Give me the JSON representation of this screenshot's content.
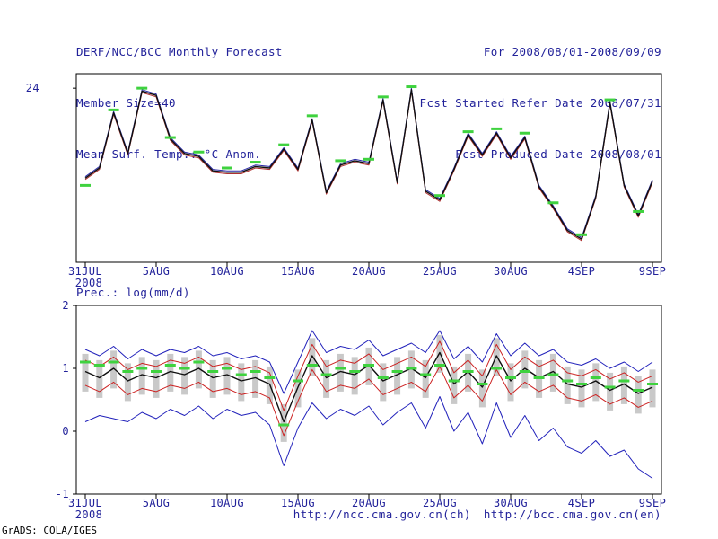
{
  "header": {
    "left": [
      "DERF/NCC/BCC Monthly Forecast",
      "Member Size=40",
      "Mean Surf. Temp.: °C Anom."
    ],
    "right": [
      "For 2008/08/01-2008/09/09",
      "Fcst Started Refer Date 2008/07/31",
      "Fcst Produced Date 2008/08/01"
    ]
  },
  "footer": {
    "credit": "GrADS: COLA/IGES",
    "url_ch": "http://ncc.cma.gov.cn(ch)",
    "url_en": "http://bcc.cma.gov.cn(en)"
  },
  "colors": {
    "text": "#22229a",
    "axis": "#000000",
    "obs_green": "#3fd23f",
    "spread_gray": "#c9c9c9"
  },
  "chart_data": [
    {
      "type": "line",
      "name": "surface-temp-anomaly",
      "x_tick_labels": [
        "31JUL",
        "5AUG",
        "10AUG",
        "15AUG",
        "20AUG",
        "25AUG",
        "30AUG",
        "4SEP",
        "9SEP"
      ],
      "x_tick_step": 5,
      "x_year_label": "2008",
      "ylim": [
        12,
        25
      ],
      "y_tick_values": [
        24
      ],
      "y_tick_labels": [
        "24"
      ],
      "series": [
        {
          "name": "ensemble-member-upper",
          "color": "#2a2aa8",
          "width": 1,
          "values": [
            17.9,
            18.6,
            22.4,
            19.6,
            23.9,
            23.6,
            20.6,
            19.6,
            19.4,
            18.4,
            18.3,
            18.3,
            18.7,
            18.6,
            19.9,
            18.5,
            21.9,
            16.9,
            18.8,
            19.1,
            18.9,
            23.3,
            17.6,
            24.0,
            17.0,
            16.4,
            18.5,
            20.9,
            19.5,
            21.0,
            19.3,
            20.7,
            17.3,
            15.9,
            14.3,
            13.7,
            16.6,
            23.1,
            17.4,
            15.3,
            17.7
          ]
        },
        {
          "name": "ensemble-member-lower",
          "color": "#b03030",
          "width": 1,
          "values": [
            17.7,
            18.4,
            22.2,
            19.4,
            23.7,
            23.4,
            20.4,
            19.4,
            19.2,
            18.2,
            18.1,
            18.1,
            18.5,
            18.4,
            19.7,
            18.3,
            21.7,
            16.7,
            18.6,
            18.9,
            18.7,
            23.1,
            17.4,
            23.8,
            16.8,
            16.2,
            18.3,
            20.7,
            19.3,
            20.8,
            19.1,
            20.5,
            17.1,
            15.7,
            14.1,
            13.5,
            16.4,
            22.9,
            17.2,
            15.1,
            17.5
          ]
        },
        {
          "name": "ensemble-mean",
          "color": "#101010",
          "width": 1.4,
          "values": [
            17.8,
            18.5,
            22.3,
            19.5,
            23.8,
            23.5,
            20.5,
            19.5,
            19.3,
            18.3,
            18.2,
            18.2,
            18.6,
            18.5,
            19.8,
            18.4,
            21.8,
            16.8,
            18.7,
            19.0,
            18.8,
            23.2,
            17.5,
            23.9,
            16.9,
            16.3,
            18.4,
            20.8,
            19.4,
            20.9,
            19.2,
            20.6,
            17.2,
            15.8,
            14.2,
            13.6,
            16.5,
            23.0,
            17.3,
            15.2,
            17.6
          ]
        }
      ],
      "obs_markers": {
        "name": "observed-value-markers",
        "color": "#3fd23f",
        "values": [
          17.3,
          null,
          22.5,
          null,
          24.0,
          null,
          20.6,
          null,
          19.6,
          null,
          18.5,
          null,
          18.9,
          null,
          20.1,
          null,
          22.1,
          null,
          19.0,
          null,
          19.1,
          23.4,
          null,
          24.1,
          null,
          16.6,
          null,
          21.0,
          null,
          21.2,
          null,
          20.9,
          null,
          16.1,
          null,
          13.9,
          null,
          23.2,
          null,
          15.5,
          null
        ]
      }
    },
    {
      "type": "line",
      "name": "precipitation",
      "title": "Prec.: log(mm/d)",
      "x_tick_labels": [
        "31JUL",
        "5AUG",
        "10AUG",
        "15AUG",
        "20AUG",
        "25AUG",
        "30AUG",
        "4SEP",
        "9SEP"
      ],
      "x_tick_step": 5,
      "x_year_label": "2008",
      "ylim": [
        -1,
        2
      ],
      "y_tick_values": [
        2,
        1,
        0,
        -1
      ],
      "y_tick_labels": [
        "2",
        "1",
        "0",
        "-1"
      ],
      "spread_bars": {
        "name": "ensemble-spread-bars",
        "color": "#c9c9c9",
        "high": [
          1.23,
          1.13,
          1.28,
          1.08,
          1.18,
          1.13,
          1.23,
          1.18,
          1.28,
          1.13,
          1.18,
          1.08,
          1.13,
          1.03,
          0.43,
          0.98,
          1.48,
          1.13,
          1.23,
          1.18,
          1.33,
          1.08,
          1.18,
          1.28,
          1.13,
          1.53,
          1.03,
          1.23,
          0.98,
          1.48,
          1.08,
          1.28,
          1.13,
          1.23,
          1.03,
          0.98,
          1.08,
          0.93,
          1.03,
          0.88,
          0.98
        ],
        "low": [
          0.63,
          0.53,
          0.68,
          0.48,
          0.58,
          0.53,
          0.63,
          0.58,
          0.68,
          0.53,
          0.58,
          0.48,
          0.53,
          0.43,
          -0.17,
          0.38,
          0.88,
          0.53,
          0.63,
          0.58,
          0.73,
          0.48,
          0.58,
          0.68,
          0.53,
          0.93,
          0.43,
          0.63,
          0.38,
          0.88,
          0.48,
          0.68,
          0.53,
          0.63,
          0.43,
          0.38,
          0.48,
          0.33,
          0.43,
          0.28,
          0.38
        ]
      },
      "series": [
        {
          "name": "ensemble-max",
          "color": "#2222bb",
          "width": 1,
          "values": [
            1.3,
            1.2,
            1.35,
            1.15,
            1.3,
            1.2,
            1.3,
            1.25,
            1.35,
            1.2,
            1.25,
            1.15,
            1.2,
            1.1,
            0.6,
            1.1,
            1.6,
            1.25,
            1.35,
            1.3,
            1.45,
            1.2,
            1.3,
            1.4,
            1.25,
            1.6,
            1.15,
            1.35,
            1.1,
            1.55,
            1.2,
            1.4,
            1.2,
            1.3,
            1.1,
            1.05,
            1.15,
            1.0,
            1.1,
            0.95,
            1.1
          ]
        },
        {
          "name": "ensemble-min",
          "color": "#2222bb",
          "width": 1,
          "values": [
            0.15,
            0.25,
            0.2,
            0.15,
            0.3,
            0.2,
            0.35,
            0.25,
            0.4,
            0.2,
            0.35,
            0.25,
            0.3,
            0.1,
            -0.55,
            0.05,
            0.45,
            0.2,
            0.35,
            0.25,
            0.4,
            0.1,
            0.3,
            0.45,
            0.05,
            0.55,
            0.0,
            0.3,
            -0.2,
            0.45,
            -0.1,
            0.25,
            -0.15,
            0.05,
            -0.25,
            -0.35,
            -0.15,
            -0.4,
            -0.3,
            -0.6,
            -0.75
          ]
        },
        {
          "name": "upper-quartile",
          "color": "#cc2222",
          "width": 1,
          "values": [
            1.13,
            1.03,
            1.18,
            0.98,
            1.08,
            1.03,
            1.13,
            1.08,
            1.18,
            1.03,
            1.08,
            0.98,
            1.03,
            0.93,
            0.33,
            0.88,
            1.38,
            1.03,
            1.13,
            1.08,
            1.23,
            0.98,
            1.08,
            1.18,
            1.03,
            1.43,
            0.93,
            1.13,
            0.88,
            1.38,
            0.98,
            1.18,
            1.03,
            1.13,
            0.93,
            0.88,
            0.98,
            0.83,
            0.93,
            0.78,
            0.88
          ]
        },
        {
          "name": "lower-quartile",
          "color": "#cc2222",
          "width": 1,
          "values": [
            0.73,
            0.63,
            0.78,
            0.58,
            0.68,
            0.63,
            0.73,
            0.68,
            0.78,
            0.63,
            0.68,
            0.58,
            0.63,
            0.53,
            -0.07,
            0.48,
            0.98,
            0.63,
            0.73,
            0.68,
            0.83,
            0.58,
            0.68,
            0.78,
            0.63,
            1.03,
            0.53,
            0.73,
            0.48,
            0.98,
            0.58,
            0.78,
            0.63,
            0.73,
            0.53,
            0.48,
            0.58,
            0.43,
            0.53,
            0.38,
            0.48
          ]
        },
        {
          "name": "ensemble-mean",
          "color": "#101010",
          "width": 1.4,
          "values": [
            0.95,
            0.85,
            1.0,
            0.8,
            0.9,
            0.85,
            0.95,
            0.9,
            1.0,
            0.85,
            0.9,
            0.8,
            0.85,
            0.75,
            0.15,
            0.7,
            1.2,
            0.85,
            0.95,
            0.9,
            1.05,
            0.8,
            0.9,
            1.0,
            0.85,
            1.25,
            0.75,
            0.95,
            0.7,
            1.2,
            0.8,
            1.0,
            0.85,
            0.95,
            0.75,
            0.7,
            0.8,
            0.65,
            0.75,
            0.6,
            0.7
          ]
        }
      ],
      "obs_markers": {
        "name": "observed-value-markers",
        "color": "#3fd23f",
        "values": [
          1.1,
          1.05,
          1.1,
          0.95,
          1.0,
          0.95,
          1.05,
          1.0,
          1.1,
          0.95,
          1.0,
          0.9,
          0.95,
          0.85,
          0.1,
          0.8,
          1.05,
          0.9,
          1.0,
          0.95,
          1.05,
          0.85,
          0.95,
          1.0,
          0.9,
          1.05,
          0.8,
          0.95,
          0.75,
          1.0,
          0.85,
          0.95,
          0.85,
          0.9,
          0.8,
          0.75,
          0.85,
          0.7,
          0.8,
          0.65,
          0.75
        ]
      }
    }
  ]
}
